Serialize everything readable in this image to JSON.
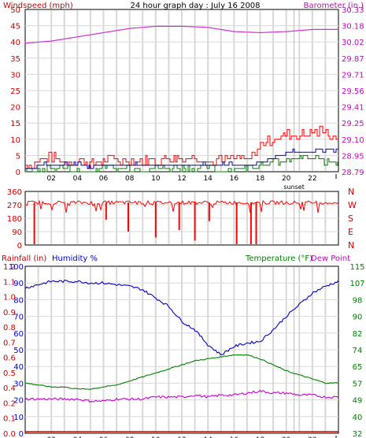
{
  "chart_data": [
    {
      "type": "line",
      "title": "24 hour graph day : July 16 2008",
      "ylabel_left": "Windspeed (mph)",
      "ylabel_right": "Barometer (in.)",
      "x_ticks": [
        "02",
        "04",
        "06",
        "08",
        "10",
        "12",
        "14",
        "16",
        "18",
        "20",
        "22"
      ],
      "sunset_label": "sunset",
      "sunset_hour": 20.6,
      "ylim_left": [
        0,
        50
      ],
      "y_ticks_left": [
        "0",
        "5",
        "10",
        "15",
        "20",
        "25",
        "30",
        "35",
        "40",
        "45",
        "50"
      ],
      "y_ticks_right": [
        "28.79",
        "28.95",
        "29.10",
        "29.25",
        "29.41",
        "29.56",
        "29.71",
        "29.87",
        "30.02",
        "30.18",
        "30.33"
      ],
      "grid": true,
      "colors": {
        "windspeed": "#ff0000",
        "windavg": "#0000cc",
        "gust_low": "#008000",
        "barometer": "#cc33cc",
        "left_axis": "#cc0000",
        "right_axis": "#cc00cc"
      },
      "series": [
        {
          "key": "barometer",
          "hours": [
            0,
            2,
            4,
            6,
            8,
            10,
            12,
            14,
            16,
            18,
            20,
            22,
            24
          ],
          "values": [
            30.01,
            30.03,
            30.07,
            30.11,
            30.15,
            30.17,
            30.17,
            30.16,
            30.12,
            30.11,
            30.12,
            30.14,
            30.14
          ]
        },
        {
          "key": "windspeed",
          "hours": [
            0,
            1,
            2,
            3,
            4,
            5,
            6,
            7,
            8,
            9,
            10,
            11,
            12,
            13,
            14,
            15,
            16,
            17,
            18,
            19,
            20,
            21,
            22,
            23,
            24
          ],
          "values": [
            2,
            3,
            4,
            3,
            3,
            2,
            3,
            3,
            3,
            3,
            3,
            4,
            4,
            4,
            3,
            3,
            4,
            3,
            8,
            10,
            11,
            11,
            12,
            12,
            10
          ]
        },
        {
          "key": "windavg",
          "hours": [
            0,
            1,
            2,
            3,
            4,
            5,
            6,
            7,
            8,
            9,
            10,
            11,
            12,
            13,
            14,
            15,
            16,
            17,
            18,
            19,
            20,
            21,
            22,
            23,
            24
          ],
          "values": [
            1,
            2,
            2,
            2,
            2,
            1,
            2,
            2,
            2,
            2,
            2,
            2,
            2,
            2,
            2,
            2,
            2,
            2,
            3,
            4,
            6,
            6,
            6,
            7,
            6
          ]
        },
        {
          "key": "gust_low",
          "hours": [
            0,
            1,
            2,
            3,
            4,
            5,
            6,
            7,
            8,
            9,
            10,
            11,
            12,
            13,
            14,
            15,
            16,
            17,
            18,
            19,
            20,
            21,
            22,
            23,
            24
          ],
          "values": [
            0,
            0,
            1,
            1,
            0,
            0,
            1,
            1,
            1,
            1,
            1,
            1,
            1,
            1,
            1,
            0,
            1,
            1,
            2,
            3,
            3,
            4,
            4,
            3,
            3
          ]
        }
      ]
    },
    {
      "type": "line",
      "y_ticks_left": [
        "360",
        "270",
        "180",
        "90",
        "0"
      ],
      "y_ticks_right": [
        "N",
        "W",
        "S",
        "E",
        "N"
      ],
      "ylim": [
        0,
        360
      ],
      "x_ticks": [
        "02",
        "04",
        "06",
        "08",
        "10",
        "12",
        "14",
        "16",
        "18",
        "20",
        "22"
      ],
      "color": "#ff0000",
      "series": [
        {
          "key": "wind_direction",
          "baseline": 285,
          "dips": [
            {
              "hour": 0.7,
              "value": 5
            },
            {
              "hour": 6.2,
              "value": 170
            },
            {
              "hour": 7.9,
              "value": 90
            },
            {
              "hour": 10.0,
              "value": 50
            },
            {
              "hour": 11.8,
              "value": 100
            },
            {
              "hour": 13.0,
              "value": 30
            },
            {
              "hour": 14.1,
              "value": 160
            },
            {
              "hour": 16.2,
              "value": 5
            },
            {
              "hour": 17.3,
              "value": 5
            },
            {
              "hour": 17.7,
              "value": 5
            }
          ]
        }
      ]
    },
    {
      "type": "line",
      "label_rainfall": "Rainfall (in)",
      "label_humidity": "Humidity %",
      "label_temperature": "Temperature (°F)",
      "label_dewpoint": "Dew Point",
      "x_ticks": [
        "02",
        "04",
        "06",
        "08",
        "10",
        "12",
        "14",
        "16",
        "18",
        "20",
        "22"
      ],
      "sunset_label": "sunset",
      "y_ticks_humidity": [
        "0",
        "10",
        "20",
        "30",
        "40",
        "50",
        "60",
        "70",
        "80",
        "90",
        "100"
      ],
      "y_ticks_rain": [
        "0.0",
        "0.1",
        "0.2",
        "0.4",
        "0.5",
        "0.6",
        "0.7",
        "0.8",
        "0.9",
        "1.0",
        "1.1",
        "1.2"
      ],
      "y_ticks_temp": [
        "32",
        "40",
        "49",
        "57",
        "65",
        "74",
        "82",
        "90",
        "98",
        "107",
        "115"
      ],
      "ylim_humidity": [
        0,
        100
      ],
      "ylim_temp": [
        32,
        115
      ],
      "colors": {
        "humidity": "#0000cc",
        "temperature": "#008000",
        "dewpoint": "#cc00cc",
        "rain": "#cc0000",
        "rain_axis": "#cc0000",
        "humidity_axis": "#0000cc",
        "temp_axis": "#008000"
      },
      "series": [
        {
          "key": "humidity",
          "hours": [
            0,
            1,
            2,
            3,
            4,
            5,
            6,
            7,
            8,
            9,
            10,
            11,
            12,
            13,
            14,
            15,
            16,
            17,
            18,
            19,
            20,
            21,
            22,
            23,
            24
          ],
          "values": [
            87,
            89,
            91,
            91,
            91,
            90,
            90,
            89,
            88,
            86,
            81,
            76,
            67,
            62,
            53,
            47,
            52,
            54,
            55,
            62,
            70,
            77,
            84,
            88,
            91
          ]
        },
        {
          "key": "temperature",
          "hours": [
            0,
            1,
            2,
            3,
            4,
            5,
            6,
            7,
            8,
            9,
            10,
            11,
            12,
            13,
            14,
            15,
            16,
            17,
            18,
            19,
            20,
            21,
            22,
            23,
            24
          ],
          "values": [
            57,
            56,
            55,
            55,
            54,
            54,
            55,
            56,
            58,
            60,
            62,
            64,
            66,
            68,
            69,
            70,
            71,
            71,
            69,
            66,
            63,
            61,
            59,
            57,
            57
          ]
        },
        {
          "key": "dewpoint",
          "hours": [
            0,
            1,
            2,
            3,
            4,
            5,
            6,
            7,
            8,
            9,
            10,
            11,
            12,
            13,
            14,
            15,
            16,
            17,
            18,
            19,
            20,
            21,
            22,
            23,
            24
          ],
          "values": [
            49,
            49,
            49,
            49,
            49,
            48,
            48,
            49,
            49,
            49,
            50,
            50,
            50,
            51,
            50,
            51,
            51,
            52,
            53,
            52,
            52,
            51,
            51,
            50,
            50
          ]
        },
        {
          "key": "rain",
          "hours": [
            0,
            24
          ],
          "values": [
            0,
            0
          ]
        }
      ]
    }
  ]
}
